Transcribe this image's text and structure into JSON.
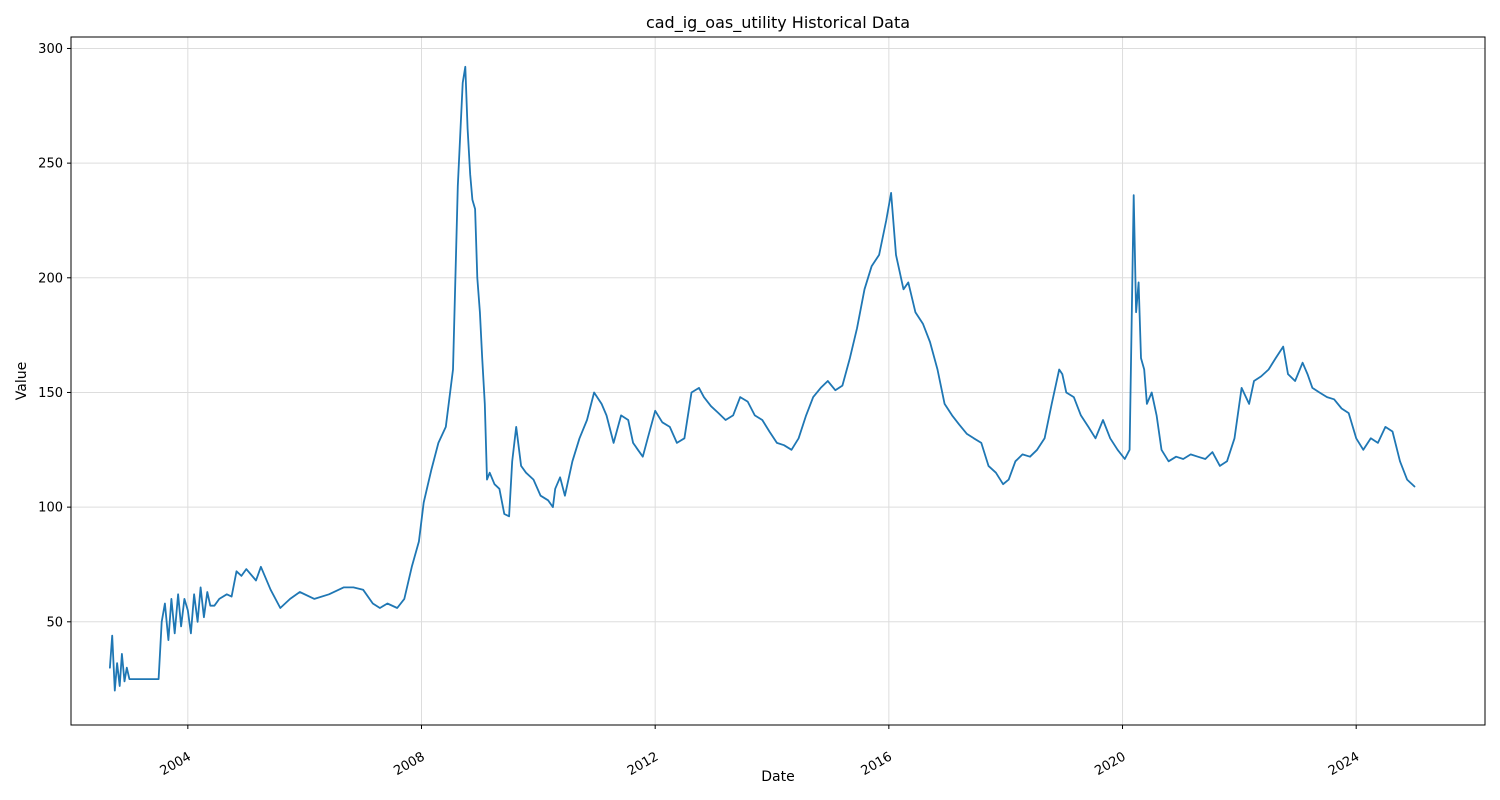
{
  "chart_data": {
    "type": "line",
    "title": "cad_ig_oas_utility Historical Data",
    "xlabel": "Date",
    "ylabel": "Value",
    "x_tick_labels": [
      "2004",
      "2008",
      "2012",
      "2016",
      "2020",
      "2024"
    ],
    "y_tick_labels": [
      "50",
      "100",
      "150",
      "200",
      "250",
      "300"
    ],
    "xlim": [
      "2002-01-01",
      "2026-03-15"
    ],
    "ylim": [
      5,
      305
    ],
    "grid": true,
    "line_color": "#1f77b4",
    "series": [
      {
        "x": [
          "2002-09-01",
          "2002-09-15",
          "2002-10-01",
          "2002-10-15",
          "2002-11-01",
          "2002-11-15",
          "2002-12-01",
          "2002-12-15",
          "2003-01-01",
          "2003-01-15",
          "2003-07-01",
          "2003-07-20",
          "2003-08-10",
          "2003-09-01",
          "2003-09-20",
          "2003-10-10",
          "2003-11-01",
          "2003-11-20",
          "2003-12-10",
          "2004-01-01",
          "2004-01-20",
          "2004-02-10",
          "2004-03-01",
          "2004-03-20",
          "2004-04-10",
          "2004-05-01",
          "2004-05-20",
          "2004-06-15",
          "2004-07-15",
          "2004-09-01",
          "2004-10-01",
          "2004-11-01",
          "2004-12-01",
          "2005-01-01",
          "2005-03-01",
          "2005-04-01",
          "2005-06-01",
          "2005-08-01",
          "2005-10-01",
          "2005-12-01",
          "2006-03-01",
          "2006-06-01",
          "2006-09-01",
          "2006-11-01",
          "2007-01-01",
          "2007-03-01",
          "2007-04-15",
          "2007-06-01",
          "2007-08-01",
          "2007-09-15",
          "2007-11-01",
          "2007-12-15",
          "2008-01-15",
          "2008-03-01",
          "2008-04-15",
          "2008-06-01",
          "2008-07-15",
          "2008-08-15",
          "2008-09-15",
          "2008-10-01",
          "2008-10-15",
          "2008-11-01",
          "2008-11-15",
          "2008-12-01",
          "2008-12-15",
          "2009-01-01",
          "2009-01-15",
          "2009-02-01",
          "2009-02-15",
          "2009-03-01",
          "2009-04-01",
          "2009-05-01",
          "2009-06-01",
          "2009-07-01",
          "2009-07-20",
          "2009-08-15",
          "2009-09-15",
          "2009-10-15",
          "2009-12-01",
          "2010-01-15",
          "2010-03-01",
          "2010-04-01",
          "2010-04-15",
          "2010-05-15",
          "2010-06-15",
          "2010-08-01",
          "2010-09-15",
          "2010-11-01",
          "2010-12-15",
          "2011-02-01",
          "2011-03-01",
          "2011-04-15",
          "2011-06-01",
          "2011-07-15",
          "2011-08-15",
          "2011-09-15",
          "2011-10-15",
          "2011-11-15",
          "2012-01-01",
          "2012-02-15",
          "2012-04-01",
          "2012-05-15",
          "2012-07-01",
          "2012-08-15",
          "2012-10-01",
          "2012-11-01",
          "2012-12-15",
          "2013-02-01",
          "2013-03-15",
          "2013-05-01",
          "2013-06-15",
          "2013-08-01",
          "2013-09-15",
          "2013-11-01",
          "2013-12-15",
          "2014-02-01",
          "2014-03-15",
          "2014-05-01",
          "2014-06-15",
          "2014-08-01",
          "2014-09-15",
          "2014-11-01",
          "2014-12-15",
          "2015-02-01",
          "2015-03-15",
          "2015-05-01",
          "2015-06-15",
          "2015-08-01",
          "2015-09-15",
          "2015-11-01",
          "2015-12-15",
          "2016-01-15",
          "2016-02-15",
          "2016-04-01",
          "2016-05-01",
          "2016-06-15",
          "2016-08-01",
          "2016-09-15",
          "2016-11-01",
          "2016-12-15",
          "2017-02-01",
          "2017-03-15",
          "2017-05-01",
          "2017-06-15",
          "2017-08-01",
          "2017-09-15",
          "2017-11-01",
          "2017-12-15",
          "2018-01-20",
          "2018-03-01",
          "2018-04-15",
          "2018-06-01",
          "2018-07-15",
          "2018-09-01",
          "2018-10-15",
          "2018-12-01",
          "2018-12-20",
          "2019-01-15",
          "2019-03-01",
          "2019-04-15",
          "2019-06-01",
          "2019-07-15",
          "2019-09-01",
          "2019-10-15",
          "2019-12-01",
          "2020-01-15",
          "2020-02-15",
          "2020-03-10",
          "2020-03-25",
          "2020-04-10",
          "2020-04-25",
          "2020-05-15",
          "2020-06-01",
          "2020-07-01",
          "2020-08-01",
          "2020-09-01",
          "2020-10-15",
          "2020-12-01",
          "2021-01-15",
          "2021-03-01",
          "2021-04-15",
          "2021-06-01",
          "2021-07-15",
          "2021-09-01",
          "2021-10-15",
          "2021-12-01",
          "2022-01-15",
          "2022-03-01",
          "2022-04-01",
          "2022-05-15",
          "2022-07-01",
          "2022-08-15",
          "2022-10-01",
          "2022-11-01",
          "2022-12-15",
          "2023-02-01",
          "2023-03-01",
          "2023-04-01",
          "2023-05-15",
          "2023-07-01",
          "2023-08-15",
          "2023-10-01",
          "2023-11-15",
          "2024-01-01",
          "2024-02-15",
          "2024-04-01",
          "2024-05-15",
          "2024-07-01",
          "2024-08-15",
          "2024-10-01",
          "2024-11-15",
          "2024-12-31"
        ],
        "values": [
          30,
          44,
          20,
          32,
          22,
          36,
          24,
          30,
          25,
          25,
          25,
          50,
          58,
          42,
          60,
          45,
          62,
          48,
          60,
          55,
          45,
          62,
          50,
          65,
          52,
          63,
          57,
          57,
          60,
          62,
          61,
          72,
          70,
          73,
          68,
          74,
          64,
          56,
          60,
          63,
          60,
          62,
          65,
          65,
          64,
          58,
          56,
          58,
          56,
          60,
          74,
          85,
          102,
          116,
          128,
          135,
          160,
          240,
          285,
          292,
          265,
          245,
          234,
          230,
          200,
          185,
          165,
          145,
          112,
          115,
          110,
          108,
          97,
          96,
          120,
          135,
          118,
          115,
          112,
          105,
          103,
          100,
          108,
          113,
          105,
          120,
          130,
          138,
          150,
          145,
          140,
          128,
          140,
          138,
          128,
          125,
          122,
          130,
          142,
          137,
          135,
          128,
          130,
          150,
          152,
          148,
          144,
          141,
          138,
          140,
          148,
          146,
          140,
          138,
          133,
          128,
          127,
          125,
          130,
          140,
          148,
          152,
          155,
          151,
          153,
          165,
          178,
          195,
          205,
          210,
          225,
          237,
          210,
          195,
          198,
          185,
          180,
          172,
          160,
          145,
          140,
          136,
          132,
          130,
          128,
          118,
          115,
          110,
          112,
          120,
          123,
          122,
          125,
          130,
          145,
          160,
          158,
          150,
          148,
          140,
          135,
          130,
          138,
          130,
          125,
          121,
          125,
          236,
          185,
          198,
          165,
          160,
          145,
          150,
          140,
          125,
          120,
          122,
          121,
          123,
          122,
          121,
          124,
          118,
          120,
          130,
          152,
          145,
          155,
          157,
          160,
          165,
          170,
          158,
          155,
          163,
          158,
          152,
          150,
          148,
          147,
          143,
          141,
          130,
          125,
          130,
          128,
          135,
          133,
          120,
          112,
          109
        ]
      }
    ]
  }
}
